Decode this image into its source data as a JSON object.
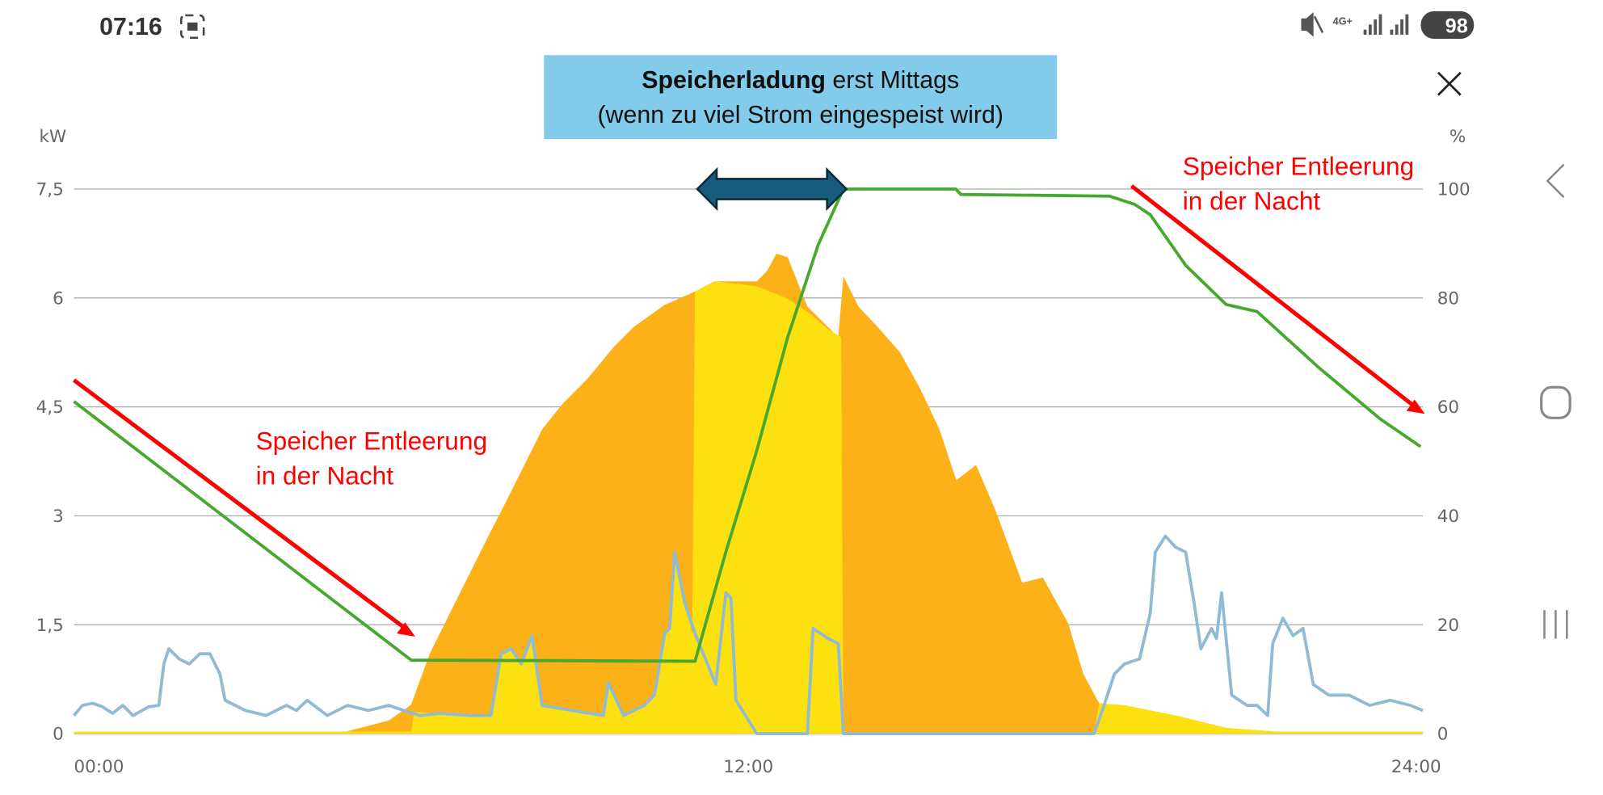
{
  "status_bar": {
    "time": "07:16",
    "network": "4G+",
    "battery": "98"
  },
  "close_label": "close",
  "callout": {
    "bold": "Speicherladung",
    "rest": " erst Mittags",
    "line2": "(wenn zu viel Strom eingespeist wird)"
  },
  "annotations": {
    "left": {
      "line1": "Speicher Entleerung",
      "line2": "in der Nacht"
    },
    "right": {
      "line1": "Speicher Entleerung",
      "line2": "in der Nacht"
    }
  },
  "colors": {
    "production": "#fbb117",
    "self_use": "#fde010",
    "consumption": "#8fbcd4",
    "battery": "#46a82e",
    "arrow": "#ff0000",
    "callout_bg": "#83cbea",
    "double_arrow": "#175c7c"
  },
  "chart_data": {
    "type": "area",
    "xlabel": "",
    "ylabel_left": "kW",
    "ylabel_right": "%",
    "xlim": [
      0,
      24
    ],
    "ylim_left": [
      0,
      7.5
    ],
    "ylim_right": [
      0,
      100
    ],
    "x_ticks": [
      "00:00",
      "12:00",
      "24:00"
    ],
    "x_tick_values": [
      0,
      12,
      24
    ],
    "y_left_ticks": [
      "0",
      "1,5",
      "3",
      "4,5",
      "6",
      "7,5"
    ],
    "y_right_ticks": [
      "0",
      "20",
      "40",
      "60",
      "80",
      "100"
    ],
    "grid": true,
    "series": [
      {
        "name": "production",
        "unit": "kW",
        "points": [
          [
            0,
            0
          ],
          [
            4.69,
            0
          ],
          [
            5.6,
            0.18
          ],
          [
            6,
            0.4
          ],
          [
            6.33,
            1.1
          ],
          [
            6.87,
            1.94
          ],
          [
            7.42,
            2.79
          ],
          [
            7.69,
            3.2
          ],
          [
            8.33,
            4.19
          ],
          [
            8.69,
            4.54
          ],
          [
            9.15,
            4.9
          ],
          [
            9.6,
            5.32
          ],
          [
            9.96,
            5.6
          ],
          [
            10.5,
            5.9
          ],
          [
            11.05,
            6.09
          ],
          [
            11.4,
            6.23
          ],
          [
            12.15,
            6.23
          ],
          [
            12.33,
            6.37
          ],
          [
            12.5,
            6.61
          ],
          [
            12.7,
            6.56
          ],
          [
            13.05,
            5.88
          ],
          [
            13.6,
            5.46
          ],
          [
            13.69,
            6.3
          ],
          [
            13.96,
            5.88
          ],
          [
            14.3,
            5.6
          ],
          [
            14.7,
            5.25
          ],
          [
            15.05,
            4.76
          ],
          [
            15.4,
            4.19
          ],
          [
            15.7,
            3.49
          ],
          [
            16.05,
            3.7
          ],
          [
            16.4,
            3.07
          ],
          [
            16.87,
            2.08
          ],
          [
            17.24,
            2.15
          ],
          [
            17.69,
            1.52
          ],
          [
            17.96,
            0.82
          ],
          [
            18.24,
            0.42
          ],
          [
            18.7,
            0.39
          ],
          [
            19.6,
            0.25
          ],
          [
            20.5,
            0.08
          ],
          [
            21.4,
            0
          ],
          [
            24,
            0
          ]
        ]
      },
      {
        "name": "self_use",
        "unit": "kW",
        "points": [
          [
            0,
            0.03
          ],
          [
            6,
            0.03
          ],
          [
            6.05,
            0.3
          ],
          [
            6.51,
            0.28
          ],
          [
            7.05,
            0.25
          ],
          [
            7.42,
            0.25
          ],
          [
            7.6,
            1.1
          ],
          [
            7.78,
            1.17
          ],
          [
            7.96,
            0.96
          ],
          [
            8.15,
            1.35
          ],
          [
            8.33,
            0.39
          ],
          [
            8.87,
            0.32
          ],
          [
            9.42,
            0.25
          ],
          [
            9.51,
            0.7
          ],
          [
            9.78,
            0.25
          ],
          [
            10.15,
            0.39
          ],
          [
            10.33,
            0.53
          ],
          [
            10.51,
            1.38
          ],
          [
            10.6,
            1.45
          ],
          [
            10.69,
            2.5
          ],
          [
            10.87,
            1.8
          ],
          [
            11.0,
            1.38
          ],
          [
            11.05,
            6.09
          ],
          [
            11.42,
            6.23
          ],
          [
            12.15,
            6.16
          ],
          [
            12.7,
            5.99
          ],
          [
            13.05,
            5.81
          ],
          [
            13.42,
            5.57
          ],
          [
            13.65,
            5.46
          ],
          [
            13.69,
            0
          ],
          [
            18.15,
            0
          ],
          [
            18.24,
            0.42
          ],
          [
            18.7,
            0.39
          ],
          [
            19.6,
            0.25
          ],
          [
            20.5,
            0.08
          ],
          [
            21.4,
            0.03
          ],
          [
            24,
            0.03
          ]
        ]
      },
      {
        "name": "consumption",
        "unit": "kW",
        "points": [
          [
            0,
            0.25
          ],
          [
            0.15,
            0.39
          ],
          [
            0.33,
            0.42
          ],
          [
            0.51,
            0.37
          ],
          [
            0.69,
            0.28
          ],
          [
            0.87,
            0.39
          ],
          [
            1.05,
            0.25
          ],
          [
            1.33,
            0.37
          ],
          [
            1.51,
            0.39
          ],
          [
            1.6,
            0.96
          ],
          [
            1.69,
            1.17
          ],
          [
            1.87,
            1.03
          ],
          [
            2.05,
            0.96
          ],
          [
            2.24,
            1.1
          ],
          [
            2.42,
            1.1
          ],
          [
            2.6,
            0.82
          ],
          [
            2.69,
            0.46
          ],
          [
            3.05,
            0.32
          ],
          [
            3.42,
            0.25
          ],
          [
            3.78,
            0.39
          ],
          [
            3.96,
            0.32
          ],
          [
            4.15,
            0.46
          ],
          [
            4.51,
            0.25
          ],
          [
            4.87,
            0.39
          ],
          [
            5.24,
            0.32
          ],
          [
            5.6,
            0.39
          ],
          [
            5.87,
            0.32
          ],
          [
            6.15,
            0.25
          ],
          [
            6.51,
            0.28
          ],
          [
            7.05,
            0.25
          ],
          [
            7.42,
            0.25
          ],
          [
            7.6,
            1.1
          ],
          [
            7.78,
            1.17
          ],
          [
            7.96,
            0.96
          ],
          [
            8.15,
            1.35
          ],
          [
            8.33,
            0.39
          ],
          [
            8.87,
            0.32
          ],
          [
            9.42,
            0.25
          ],
          [
            9.51,
            0.7
          ],
          [
            9.78,
            0.25
          ],
          [
            10.15,
            0.39
          ],
          [
            10.33,
            0.53
          ],
          [
            10.51,
            1.38
          ],
          [
            10.6,
            1.45
          ],
          [
            10.69,
            2.5
          ],
          [
            10.87,
            1.8
          ],
          [
            11.05,
            1.38
          ],
          [
            11.42,
            0.68
          ],
          [
            11.6,
            1.94
          ],
          [
            11.69,
            1.87
          ],
          [
            11.78,
            0.46
          ],
          [
            12.15,
            0
          ],
          [
            13.05,
            0
          ],
          [
            13.15,
            1.45
          ],
          [
            13.42,
            1.31
          ],
          [
            13.6,
            1.24
          ],
          [
            13.69,
            0
          ],
          [
            18.15,
            0
          ],
          [
            18.33,
            0.39
          ],
          [
            18.51,
            0.82
          ],
          [
            18.69,
            0.96
          ],
          [
            18.96,
            1.03
          ],
          [
            19.15,
            1.66
          ],
          [
            19.24,
            2.5
          ],
          [
            19.42,
            2.72
          ],
          [
            19.6,
            2.57
          ],
          [
            19.78,
            2.5
          ],
          [
            19.93,
            1.8
          ],
          [
            20.05,
            1.17
          ],
          [
            20.24,
            1.45
          ],
          [
            20.33,
            1.31
          ],
          [
            20.42,
            1.94
          ],
          [
            20.6,
            0.53
          ],
          [
            20.87,
            0.39
          ],
          [
            21.05,
            0.39
          ],
          [
            21.24,
            0.25
          ],
          [
            21.33,
            1.24
          ],
          [
            21.51,
            1.59
          ],
          [
            21.69,
            1.35
          ],
          [
            21.87,
            1.45
          ],
          [
            22.05,
            0.68
          ],
          [
            22.33,
            0.53
          ],
          [
            22.69,
            0.53
          ],
          [
            23.05,
            0.39
          ],
          [
            23.42,
            0.46
          ],
          [
            23.78,
            0.39
          ],
          [
            24,
            0.32
          ]
        ]
      },
      {
        "name": "battery_soc",
        "unit": "%",
        "points": [
          [
            0,
            61
          ],
          [
            6,
            13.5
          ],
          [
            11.05,
            13.3
          ],
          [
            11.6,
            33.4
          ],
          [
            12.15,
            52
          ],
          [
            12.7,
            72.8
          ],
          [
            13.24,
            89.7
          ],
          [
            13.69,
            100
          ],
          [
            15.69,
            100
          ],
          [
            15.78,
            99
          ],
          [
            18.42,
            98.7
          ],
          [
            18.87,
            97.2
          ],
          [
            19.15,
            95.3
          ],
          [
            19.78,
            86
          ],
          [
            20.5,
            78.8
          ],
          [
            21.05,
            77.5
          ],
          [
            22.15,
            67.2
          ],
          [
            23.24,
            57.8
          ],
          [
            23.96,
            52.7
          ]
        ]
      }
    ]
  }
}
